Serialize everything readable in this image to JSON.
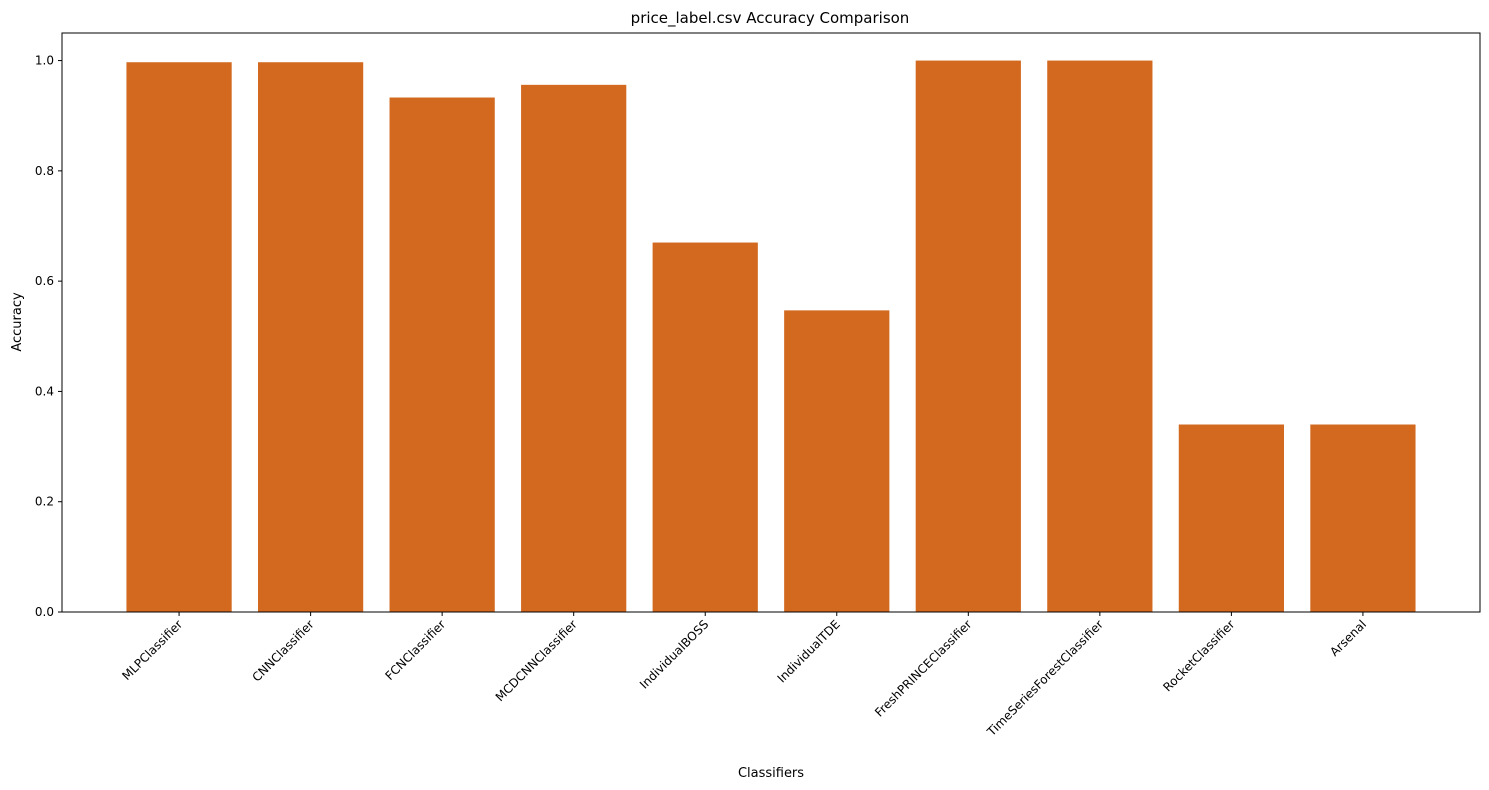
{
  "chart_data": {
    "type": "bar",
    "title": "price_label.csv Accuracy Comparison",
    "xlabel": "Classifiers",
    "ylabel": "Accuracy",
    "categories": [
      "MLPClassifier",
      "CNNClassifier",
      "FCNClassifier",
      "MCDCNNClassifier",
      "IndividualBOSS",
      "IndividualTDE",
      "FreshPRINCEClassifier",
      "TimeSeriesForestClassifier",
      "RocketClassifier",
      "Arsenal"
    ],
    "values": [
      0.997,
      0.997,
      0.933,
      0.956,
      0.67,
      0.547,
      1.0,
      1.0,
      0.34,
      0.34
    ],
    "ylim": [
      0,
      1.05
    ],
    "yticks": [
      0.0,
      0.2,
      0.4,
      0.6,
      0.8,
      1.0
    ],
    "ytick_labels": [
      "0.0",
      "0.2",
      "0.4",
      "0.6",
      "0.8",
      "1.0"
    ],
    "bar_color": "#d2691e",
    "grid": false,
    "legend": "none"
  }
}
